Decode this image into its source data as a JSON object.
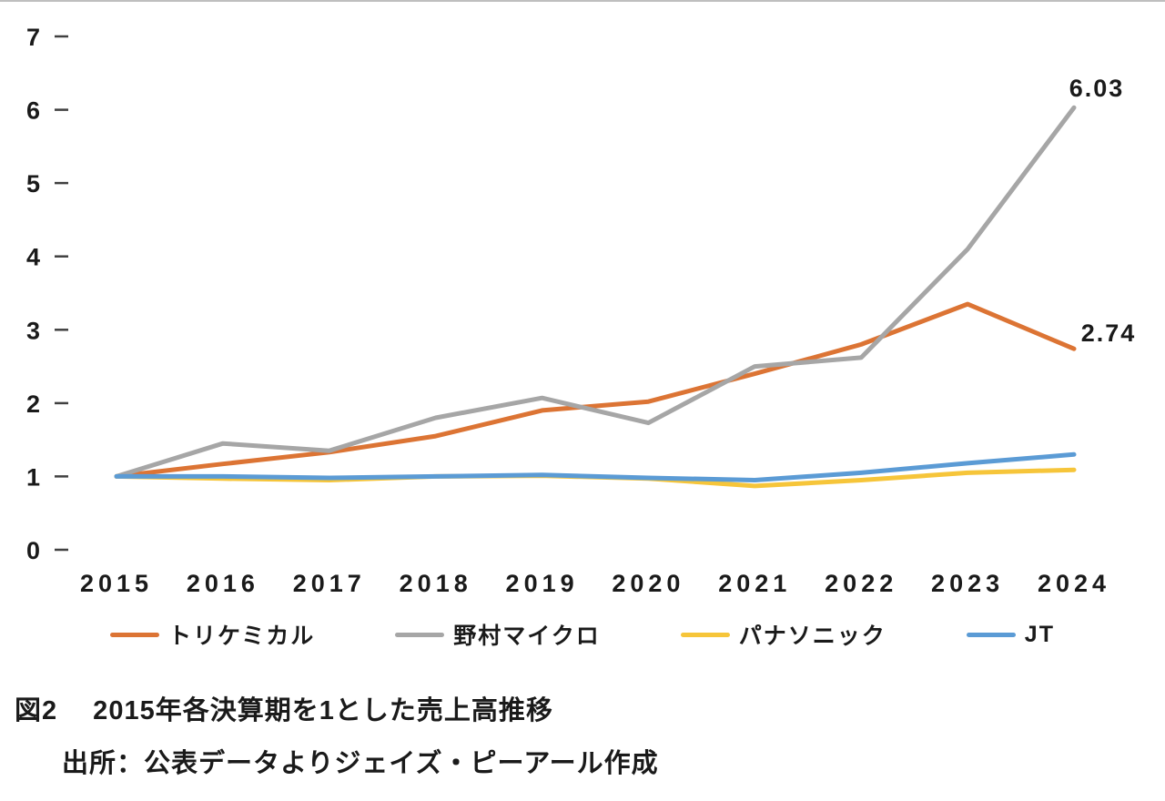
{
  "chart_data": {
    "type": "line",
    "x": [
      "2015",
      "2016",
      "2017",
      "2018",
      "2019",
      "2020",
      "2021",
      "2022",
      "2023",
      "2024"
    ],
    "series": [
      {
        "name": "トリケミカル",
        "color": "#DC7434",
        "values": [
          1.0,
          1.17,
          1.33,
          1.55,
          1.9,
          2.02,
          2.4,
          2.8,
          3.35,
          2.74
        ],
        "end_label": "2.74",
        "label_dx": 38,
        "label_dy": -8
      },
      {
        "name": "野村マイクロ",
        "color": "#A6A6A6",
        "values": [
          1.0,
          1.45,
          1.35,
          1.8,
          2.07,
          1.73,
          2.5,
          2.62,
          4.1,
          6.03
        ],
        "end_label": "6.03",
        "label_dx": 25,
        "label_dy": -12
      },
      {
        "name": "パナソニック",
        "color": "#F6C53A",
        "values": [
          1.0,
          0.97,
          0.95,
          1.0,
          1.01,
          0.97,
          0.87,
          0.95,
          1.05,
          1.09
        ]
      },
      {
        "name": "JT",
        "color": "#5B9BD5",
        "values": [
          1.0,
          1.0,
          0.98,
          1.0,
          1.02,
          0.98,
          0.95,
          1.05,
          1.18,
          1.3
        ]
      }
    ],
    "ylim": [
      0,
      7
    ],
    "yticks": [
      0,
      1,
      2,
      3,
      4,
      5,
      6,
      7
    ],
    "grid": false,
    "legend_position": "bottom",
    "title": "図2　2015年各決算期を1とした売上高推移"
  },
  "captions": {
    "title": "図2　 2015年各決算期を1とした売上高推移",
    "source": "出所：公表データよりジェイズ・ピーアール作成"
  }
}
